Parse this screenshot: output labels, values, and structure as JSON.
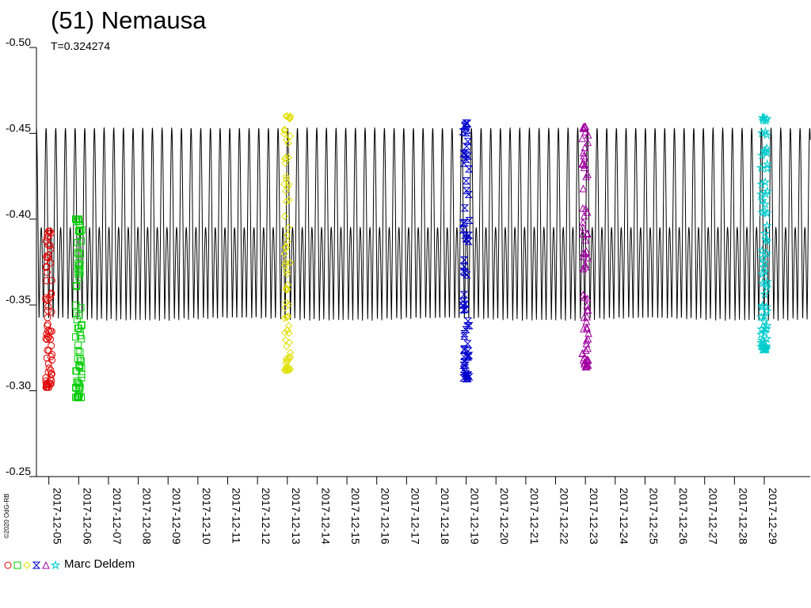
{
  "title": "(51) Nemausa",
  "period_label": "T=0.324274",
  "copyright": "©2020 OdG-RB",
  "legend": {
    "label": "Marc Deldem",
    "markers": [
      {
        "shape": "circle",
        "color": "#e00000"
      },
      {
        "shape": "square",
        "color": "#00cc00"
      },
      {
        "shape": "diamond",
        "color": "#e0e000"
      },
      {
        "shape": "hourglass",
        "color": "#0000cc"
      },
      {
        "shape": "triangle",
        "color": "#a000a0"
      },
      {
        "shape": "star",
        "color": "#00cccc"
      }
    ]
  },
  "chart_data": {
    "type": "scatter",
    "title": "(51) Nemausa",
    "subtitle": "T=0.324274",
    "xlabel": "",
    "ylabel": "",
    "y_reversed": true,
    "ylim": [
      -0.25,
      -0.5
    ],
    "y_ticks": [
      -0.5,
      -0.45,
      -0.4,
      -0.35,
      -0.3,
      -0.25
    ],
    "y_tick_labels": [
      "-0.50",
      "-0.45",
      "-0.40",
      "-0.35",
      "-0.30",
      "-0.25"
    ],
    "x_ticks": [
      "2017-12-05",
      "2017-12-06",
      "2017-12-07",
      "2017-12-08",
      "2017-12-09",
      "2017-12-10",
      "2017-12-11",
      "2017-12-12",
      "2017-12-13",
      "2017-12-14",
      "2017-12-15",
      "2017-12-16",
      "2017-12-17",
      "2017-12-18",
      "2017-12-19",
      "2017-12-20",
      "2017-12-21",
      "2017-12-22",
      "2017-12-23",
      "2017-12-24",
      "2017-12-25",
      "2017-12-26",
      "2017-12-27",
      "2017-12-28",
      "2017-12-29"
    ],
    "xlim": [
      "2017-12-04 14:00",
      "2017-12-30 13:00"
    ],
    "grid": false,
    "model_curve": {
      "period_days": 0.324274,
      "mag_min": -0.453,
      "mag_max": -0.315,
      "secondary_max": -0.395,
      "color": "#000000"
    },
    "series": [
      {
        "name": "Marc Deldem",
        "date": "2017-12-05",
        "marker": "circle",
        "color": "#e00000",
        "mag_range": [
          -0.393,
          -0.302
        ]
      },
      {
        "name": "Marc Deldem",
        "date": "2017-12-06",
        "marker": "square",
        "color": "#00cc00",
        "mag_range": [
          -0.4,
          -0.296
        ]
      },
      {
        "name": "Marc Deldem",
        "date": "2017-12-13",
        "marker": "diamond",
        "color": "#e0e000",
        "mag_range": [
          -0.46,
          -0.312
        ]
      },
      {
        "name": "Marc Deldem",
        "date": "2017-12-19",
        "marker": "hourglass",
        "color": "#0000cc",
        "mag_range": [
          -0.456,
          -0.307
        ]
      },
      {
        "name": "Marc Deldem",
        "date": "2017-12-23",
        "marker": "triangle",
        "color": "#a000a0",
        "mag_range": [
          -0.454,
          -0.314
        ]
      },
      {
        "name": "Marc Deldem",
        "date": "2017-12-29",
        "marker": "star",
        "color": "#00cccc",
        "mag_range": [
          -0.459,
          -0.324
        ]
      }
    ]
  }
}
